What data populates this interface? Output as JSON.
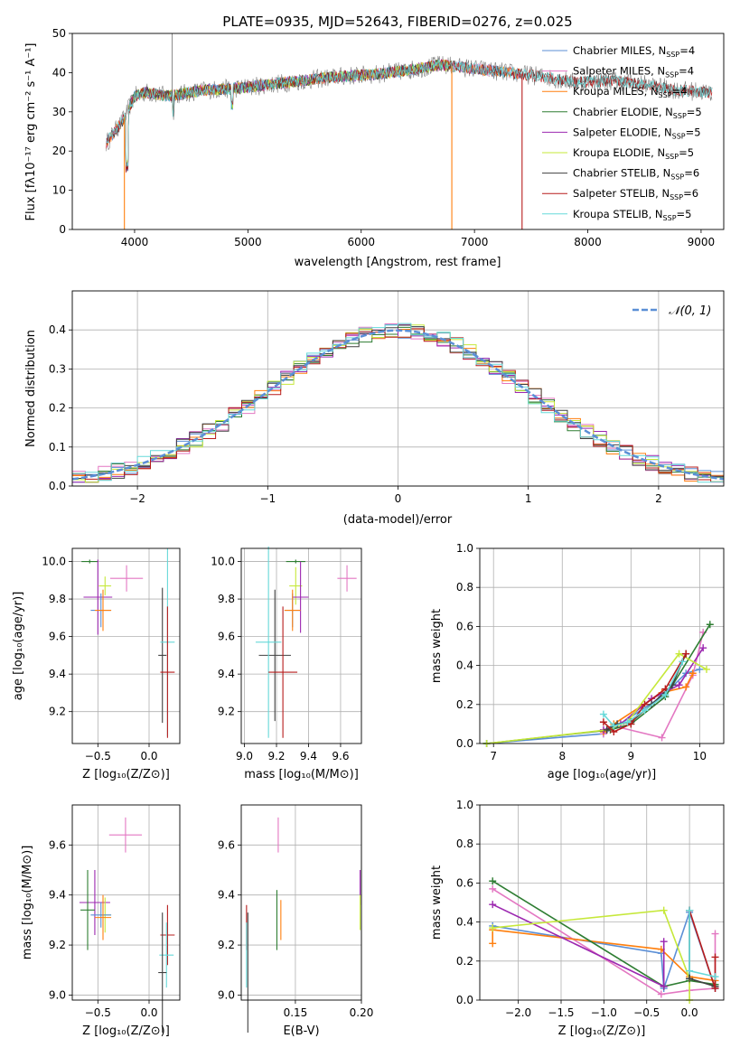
{
  "colors": {
    "chabrier_miles": "#5b8fd6",
    "salpeter_miles": "#e377c2",
    "kroupa_miles": "#ff7f0e",
    "chabrier_elodie": "#2e7d32",
    "salpeter_elodie": "#9c27b0",
    "kroupa_elodie": "#c6e83a",
    "chabrier_stelib": "#404040",
    "salpeter_stelib": "#b71c1c",
    "kroupa_stelib": "#66d9d9",
    "spectrum_data": "#7f7f7f",
    "gaussian": "#5b8fd6",
    "grid": "#b0b0b0"
  },
  "chart_data": [
    {
      "id": "spectrum",
      "type": "line",
      "title": "PLATE=0935, MJD=52643, FIBERID=0276, z=0.025",
      "xlabel": "wavelength [Angstrom, rest frame]",
      "ylabel": "Flux [fλ10⁻¹⁷ erg cm⁻² s⁻¹ A⁻¹]",
      "xlim": [
        3450,
        9200
      ],
      "ylim": [
        0,
        50
      ],
      "xticks": [
        "4000",
        "5000",
        "6000",
        "7000",
        "8000",
        "9000"
      ],
      "yticks": [
        "0",
        "10",
        "20",
        "30",
        "40",
        "50"
      ],
      "grid": false,
      "legend_position": "top-right",
      "legend": [
        "Chabrier MILES, N",
        "Salpeter MILES, N",
        "Kroupa MILES, N",
        "Chabrier ELODIE, N",
        "Salpeter ELODIE, N",
        "Kroupa ELODIE, N",
        "Chabrier STELIB, N",
        "Salpeter STELIB, N",
        "Kroupa STELIB, N"
      ],
      "legend_sub": "SSP",
      "legend_counts": [
        "=4",
        "=4",
        "=4",
        "=5",
        "=5",
        "=5",
        "=6",
        "=6",
        "=5"
      ],
      "continuum": {
        "x": [
          3750,
          3900,
          4000,
          4100,
          4300,
          4600,
          4900,
          5200,
          5500,
          5800,
          6100,
          6400,
          6700,
          7000,
          7300,
          7600,
          7900,
          8200,
          8500,
          8800,
          9100
        ],
        "y": [
          22,
          28,
          34,
          35,
          34,
          35.5,
          36,
          37,
          38,
          39,
          39.5,
          40.5,
          42,
          41,
          40,
          39,
          37.5,
          38,
          37,
          35.5,
          35
        ]
      },
      "wavelength_ranges": {
        "MILES": [
          3750,
          7400
        ],
        "ELODIE": [
          3900,
          6800
        ],
        "STELIB": [
          3750,
          9100
        ]
      }
    },
    {
      "id": "residuals",
      "type": "histogram",
      "xlabel": "(data-model)/error",
      "ylabel": "Normed distribution",
      "xlim": [
        -2.5,
        2.5
      ],
      "ylim": [
        0,
        0.5
      ],
      "xticks": [
        "−2",
        "−1",
        "0",
        "1",
        "2"
      ],
      "yticks": [
        "0.0",
        "0.1",
        "0.2",
        "0.3",
        "0.4"
      ],
      "grid": true,
      "legend_position": "top-right",
      "legend": "𝒩(0, 1)",
      "bin_width": 0.1,
      "histogram_noise_amplitude": 0.04
    },
    {
      "id": "age_vs_z",
      "type": "errorbar",
      "xlabel": "Z [log₁₀(Z/Z⊙)]",
      "ylabel": "age  [log₁₀(age/yr)]",
      "xlim": [
        -0.75,
        0.3
      ],
      "ylim": [
        9.03,
        10.07
      ],
      "xticks": [
        "−0.5",
        "0.0"
      ],
      "yticks": [
        "9.2",
        "9.4",
        "9.6",
        "9.8",
        "10.0"
      ],
      "grid": true,
      "points": [
        {
          "model": "salpeter_miles",
          "x": -0.22,
          "y": 9.91,
          "xerr": 0.16,
          "yerr": 0.07
        },
        {
          "model": "kroupa_elodie",
          "x": -0.43,
          "y": 9.87,
          "xerr": 0.06,
          "yerr": 0.05
        },
        {
          "model": "chabrier_elodie",
          "x": -0.58,
          "y": 10.0,
          "xerr": 0.08,
          "yerr": 0.01
        },
        {
          "model": "salpeter_elodie",
          "x": -0.5,
          "y": 9.81,
          "xerr": 0.14,
          "yerr": 0.2
        },
        {
          "model": "chabrier_miles",
          "x": -0.47,
          "y": 9.74,
          "xerr": 0.1,
          "yerr": 0.09
        },
        {
          "model": "kroupa_miles",
          "x": -0.45,
          "y": 9.74,
          "xerr": 0.08,
          "yerr": 0.11
        },
        {
          "model": "chabrier_stelib",
          "x": 0.13,
          "y": 9.5,
          "xerr": 0.04,
          "yerr": 0.36
        },
        {
          "model": "kroupa_stelib",
          "x": 0.18,
          "y": 9.57,
          "xerr": 0.07,
          "yerr": 0.5
        },
        {
          "model": "salpeter_stelib",
          "x": 0.18,
          "y": 9.41,
          "xerr": 0.07,
          "yerr": 0.35
        }
      ]
    },
    {
      "id": "age_vs_mass",
      "type": "errorbar",
      "xlabel": "mass [log₁₀(M/M⊙)]",
      "ylabel": "",
      "xlim": [
        8.98,
        9.73
      ],
      "ylim": [
        9.03,
        10.07
      ],
      "xticks": [
        "9.0",
        "9.2",
        "9.4",
        "9.6"
      ],
      "yticks": [
        "9.2",
        "9.4",
        "9.6",
        "9.8",
        "10.0"
      ],
      "grid": true,
      "points": [
        {
          "model": "salpeter_miles",
          "x": 9.64,
          "y": 9.91,
          "xerr": 0.06,
          "yerr": 0.07
        },
        {
          "model": "kroupa_elodie",
          "x": 9.32,
          "y": 9.87,
          "xerr": 0.04,
          "yerr": 0.1
        },
        {
          "model": "chabrier_elodie",
          "x": 9.32,
          "y": 10.0,
          "xerr": 0.06,
          "yerr": 0.01
        },
        {
          "model": "salpeter_elodie",
          "x": 9.35,
          "y": 9.81,
          "xerr": 0.05,
          "yerr": 0.19
        },
        {
          "model": "chabrier_miles",
          "x": 9.3,
          "y": 9.74,
          "xerr": 0.05,
          "yerr": 0.09
        },
        {
          "model": "kroupa_miles",
          "x": 9.3,
          "y": 9.74,
          "xerr": 0.05,
          "yerr": 0.11
        },
        {
          "model": "chabrier_stelib",
          "x": 9.19,
          "y": 9.5,
          "xerr": 0.1,
          "yerr": 0.35
        },
        {
          "model": "kroupa_stelib",
          "x": 9.15,
          "y": 9.57,
          "xerr": 0.08,
          "yerr": 0.51
        },
        {
          "model": "salpeter_stelib",
          "x": 9.24,
          "y": 9.41,
          "xerr": 0.09,
          "yerr": 0.35
        }
      ]
    },
    {
      "id": "weight_vs_age",
      "type": "line",
      "xlabel": "age  [log₁₀(age/yr)]",
      "ylabel": "mass weight",
      "xlim": [
        6.8,
        10.35
      ],
      "ylim": [
        0,
        1
      ],
      "xticks": [
        "7",
        "8",
        "9",
        "10"
      ],
      "yticks": [
        "0.0",
        "0.2",
        "0.4",
        "0.6",
        "0.8",
        "1.0"
      ],
      "grid": true,
      "series": [
        {
          "model": "chabrier_miles",
          "x": [
            6.9,
            8.6,
            8.75,
            9.45,
            9.8,
            10.0
          ],
          "y": [
            0.0,
            0.05,
            0.08,
            0.24,
            0.36,
            0.38
          ]
        },
        {
          "model": "salpeter_miles",
          "x": [
            8.6,
            8.75,
            9.45,
            9.9,
            10.05
          ],
          "y": [
            0.05,
            0.09,
            0.03,
            0.35,
            0.57
          ]
        },
        {
          "model": "kroupa_miles",
          "x": [
            8.6,
            8.75,
            9.45,
            9.8,
            9.9
          ],
          "y": [
            0.06,
            0.1,
            0.26,
            0.29,
            0.36
          ]
        },
        {
          "model": "chabrier_elodie",
          "x": [
            6.9,
            8.7,
            9.0,
            9.5,
            10.15
          ],
          "y": [
            0.0,
            0.07,
            0.1,
            0.24,
            0.61
          ]
        },
        {
          "model": "salpeter_elodie",
          "x": [
            8.6,
            8.85,
            9.3,
            9.7,
            10.05
          ],
          "y": [
            0.07,
            0.1,
            0.23,
            0.3,
            0.49
          ]
        },
        {
          "model": "kroupa_elodie",
          "x": [
            6.9,
            8.65,
            8.95,
            9.7,
            10.1
          ],
          "y": [
            0.0,
            0.07,
            0.11,
            0.46,
            0.38
          ]
        },
        {
          "model": "chabrier_stelib",
          "x": [
            8.65,
            8.8,
            9.0,
            9.3,
            9.6,
            9.8
          ],
          "y": [
            0.07,
            0.1,
            0.11,
            0.2,
            0.3,
            0.46
          ]
        },
        {
          "model": "salpeter_stelib",
          "x": [
            8.6,
            8.75,
            9.0,
            9.2,
            9.5,
            9.8
          ],
          "y": [
            0.11,
            0.06,
            0.1,
            0.2,
            0.28,
            0.46
          ]
        },
        {
          "model": "kroupa_stelib",
          "x": [
            8.6,
            8.75,
            8.95,
            9.2,
            9.5,
            9.75
          ],
          "y": [
            0.15,
            0.09,
            0.11,
            0.17,
            0.25,
            0.42
          ]
        }
      ]
    },
    {
      "id": "mass_vs_z",
      "type": "errorbar",
      "xlabel": "Z [log₁₀(Z/Z⊙)]",
      "ylabel": "mass [log₁₀(M/M⊙)]",
      "xlim": [
        -0.75,
        0.3
      ],
      "ylim": [
        8.98,
        9.76
      ],
      "xticks": [
        "−0.5",
        "0.0"
      ],
      "yticks": [
        "9.0",
        "9.2",
        "9.4",
        "9.6"
      ],
      "grid": true,
      "points": [
        {
          "model": "salpeter_miles",
          "x": -0.23,
          "y": 9.64,
          "xerr": 0.16,
          "yerr": 0.07
        },
        {
          "model": "salpeter_elodie",
          "x": -0.53,
          "y": 9.37,
          "xerr": 0.15,
          "yerr": 0.13
        },
        {
          "model": "kroupa_elodie",
          "x": -0.43,
          "y": 9.32,
          "xerr": 0.06,
          "yerr": 0.07
        },
        {
          "model": "chabrier_elodie",
          "x": -0.6,
          "y": 9.34,
          "xerr": 0.07,
          "yerr": 0.16
        },
        {
          "model": "chabrier_miles",
          "x": -0.47,
          "y": 9.32,
          "xerr": 0.1,
          "yerr": 0.05
        },
        {
          "model": "kroupa_miles",
          "x": -0.45,
          "y": 9.31,
          "xerr": 0.08,
          "yerr": 0.09
        },
        {
          "model": "salpeter_stelib",
          "x": 0.18,
          "y": 9.24,
          "xerr": 0.07,
          "yerr": 0.12
        },
        {
          "model": "kroupa_stelib",
          "x": 0.17,
          "y": 9.16,
          "xerr": 0.07,
          "yerr": 0.13
        },
        {
          "model": "chabrier_stelib",
          "x": 0.13,
          "y": 9.09,
          "xerr": 0.04,
          "yerr": 0.24
        }
      ]
    },
    {
      "id": "mass_vs_ebv",
      "type": "errorbar",
      "xlabel": "E(B-V)",
      "ylabel": "",
      "xlim": [
        0.109,
        0.2
      ],
      "ylim": [
        8.98,
        9.76
      ],
      "xticks": [
        "0.15",
        "0.20"
      ],
      "yticks": [
        "9.0",
        "9.2",
        "9.4",
        "9.6"
      ],
      "grid": true,
      "points": [
        {
          "model": "salpeter_miles",
          "x": 0.137,
          "y": 9.64,
          "xerr": 0.0,
          "yerr": 0.07
        },
        {
          "model": "salpeter_elodie",
          "x": 0.199,
          "y": 9.43,
          "xerr": 0.0,
          "yerr": 0.07
        },
        {
          "model": "kroupa_elodie",
          "x": 0.199,
          "y": 9.33,
          "xerr": 0.0,
          "yerr": 0.07
        },
        {
          "model": "chabrier_elodie",
          "x": 0.136,
          "y": 9.3,
          "xerr": 0.0,
          "yerr": 0.12
        },
        {
          "model": "kroupa_miles",
          "x": 0.139,
          "y": 9.3,
          "xerr": 0.0,
          "yerr": 0.08
        },
        {
          "model": "salpeter_stelib",
          "x": 0.113,
          "y": 9.27,
          "xerr": 0.0,
          "yerr": 0.09
        },
        {
          "model": "kroupa_stelib",
          "x": 0.113,
          "y": 9.16,
          "xerr": 0.0,
          "yerr": 0.13
        },
        {
          "model": "chabrier_stelib",
          "x": 0.114,
          "y": 9.09,
          "xerr": 0.0,
          "yerr": 0.24
        }
      ]
    },
    {
      "id": "weight_vs_z",
      "type": "line",
      "xlabel": "Z [log₁₀(Z/Z⊙)]",
      "ylabel": "mass weight",
      "xlim": [
        -2.45,
        0.4
      ],
      "ylim": [
        0,
        1
      ],
      "xticks": [
        "−2.0",
        "−1.5",
        "−1.0",
        "−0.5",
        "0.0"
      ],
      "yticks": [
        "0.0",
        "0.2",
        "0.4",
        "0.6",
        "0.8",
        "1.0"
      ],
      "grid": true,
      "series": [
        {
          "model": "chabrier_miles",
          "x": [
            -2.3,
            -0.33,
            -0.3,
            0.0,
            0.3
          ],
          "y": [
            0.38,
            0.24,
            0.06,
            0.45,
            0.06
          ]
        },
        {
          "model": "salpeter_miles",
          "x": [
            -2.3,
            -0.33,
            0.0,
            0.3,
            0.3
          ],
          "y": [
            0.57,
            0.03,
            0.05,
            0.06,
            0.34
          ]
        },
        {
          "model": "kroupa_miles",
          "x": [
            -2.3,
            -2.3,
            -0.33,
            0.0,
            0.3
          ],
          "y": [
            0.29,
            0.36,
            0.26,
            0.12,
            0.1
          ]
        },
        {
          "model": "chabrier_elodie",
          "x": [
            -2.3,
            -0.3,
            0.0,
            0.3
          ],
          "y": [
            0.61,
            0.07,
            0.1,
            0.08
          ]
        },
        {
          "model": "salpeter_elodie",
          "x": [
            -2.3,
            -0.3,
            -0.3
          ],
          "y": [
            0.49,
            0.07,
            0.3
          ]
        },
        {
          "model": "kroupa_elodie",
          "x": [
            -2.3,
            -0.3,
            0.0,
            0.0
          ],
          "y": [
            0.37,
            0.46,
            0.11,
            0.0
          ]
        },
        {
          "model": "chabrier_stelib",
          "x": [
            0.0,
            0.0,
            0.3
          ],
          "y": [
            0.46,
            0.11,
            0.07
          ]
        },
        {
          "model": "salpeter_stelib",
          "x": [
            0.0,
            0.3,
            0.3
          ],
          "y": [
            0.46,
            0.06,
            0.22
          ]
        },
        {
          "model": "kroupa_stelib",
          "x": [
            0.0,
            0.0,
            0.3
          ],
          "y": [
            0.46,
            0.15,
            0.12
          ]
        }
      ]
    }
  ]
}
